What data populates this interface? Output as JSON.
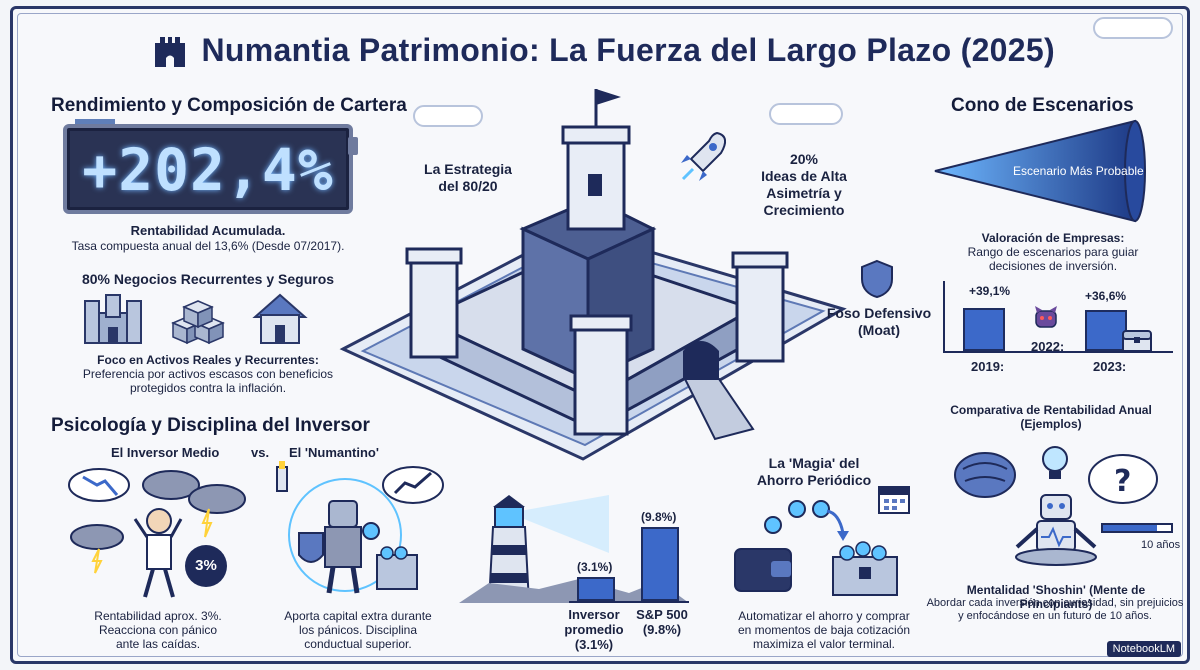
{
  "header": {
    "title": "Numantia Patrimonio: La Fuerza del Largo Plazo (2025)"
  },
  "rendimiento": {
    "section_title": "Rendimiento y Composición de Cartera",
    "lcd_value": "+202,4%",
    "caption_title": "Rentabilidad Acumulada.",
    "caption_sub": "Tasa compuesta anual del 13,6% (Desde 07/2017).",
    "recurrentes_title": "80% Negocios Recurrentes y Seguros",
    "foco_title": "Foco en Activos Reales y Recurrentes:",
    "foco_body_1": "Preferencia por activos escasos con beneficios",
    "foco_body_2": "protegidos contra la inflación."
  },
  "castle": {
    "estrategia_1": "La Estrategia",
    "estrategia_2": "del 80/20",
    "ideas_1": "20%",
    "ideas_2": "Ideas de Alta",
    "ideas_3": "Asimetría y",
    "ideas_4": "Crecimiento",
    "foso_1": "Foso Defensivo",
    "foso_2": "(Moat)"
  },
  "escenarios": {
    "section_title": "Cono de Escenarios",
    "cone_label": "Escenario Más Probable",
    "valoracion_title": "Valoración de Empresas:",
    "valoracion_1": "Rango de escenarios para guiar",
    "valoracion_2": "decisiones de inversión.",
    "bars": [
      {
        "year_label": "2019:",
        "value_label": "+39,1%",
        "value": 39.1
      },
      {
        "year_label": "2022:",
        "value_label": "",
        "value": 0
      },
      {
        "year_label": "2023:",
        "value_label": "+36,6%",
        "value": 36.6
      }
    ],
    "comparativa": "Comparativa de Rentabilidad Anual (Ejemplos)"
  },
  "psicologia": {
    "section_title": "Psicología y Disciplina del Inversor",
    "medio_label": "El Inversor Medio",
    "vs_label": "vs.",
    "numantino_label": "El 'Numantino'",
    "badge": "3%",
    "medio_text_1": "Rentabilidad aprox. 3%.",
    "medio_text_2": "Reacciona con pánico",
    "medio_text_3": "ante las caídas.",
    "numantino_text_1": "Aporta capital extra durante",
    "numantino_text_2": "los pánicos. Disciplina",
    "numantino_text_3": "conductual superior."
  },
  "lighthouse_chart": {
    "chart_data": {
      "type": "bar",
      "categories": [
        "Inversor promedio",
        "S&P 500"
      ],
      "values": [
        3.1,
        9.8
      ],
      "value_labels": [
        "(3.1%)",
        "(9.8%)"
      ]
    },
    "cat1_line1": "Inversor",
    "cat1_line2": "promedio",
    "cat1_line3": "(3.1%)",
    "cat2_line1": "S&P 500",
    "cat2_line2": "(9.8%)"
  },
  "ahorro": {
    "title_1": "La 'Magia' del",
    "title_2": "Ahorro Periódico",
    "text_1": "Automatizar el ahorro y comprar",
    "text_2": "en momentos de baja cotización",
    "text_3": "maximiza el valor terminal."
  },
  "shoshin": {
    "progress_label": "10 años",
    "progress": 0.8,
    "title": "Mentalidad 'Shoshin' (Mente de Principiants)",
    "text_1": "Abordar cada inversión con curiosidad, sin prejuicios",
    "text_2": "y enfocándose en un futuro de 10 años."
  },
  "watermark": "NotebookLM",
  "colors": {
    "navy": "#1e2a5a",
    "bar_blue": "#3c69c9",
    "accent_cyan": "#5fc3ff"
  }
}
